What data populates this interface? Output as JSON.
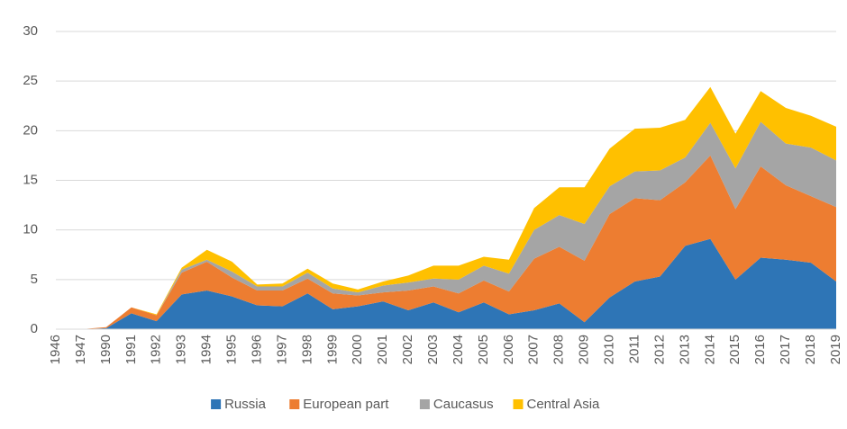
{
  "chart_data": {
    "type": "stacked_area",
    "categories": [
      "1946",
      "1947",
      "1990",
      "1991",
      "1992",
      "1993",
      "1994",
      "1995",
      "1996",
      "1997",
      "1998",
      "1999",
      "2000",
      "2001",
      "2002",
      "2003",
      "2004",
      "2005",
      "2006",
      "2007",
      "2008",
      "2009",
      "2010",
      "2011",
      "2012",
      "2013",
      "2014",
      "2015",
      "2016",
      "2017",
      "2018",
      "2019"
    ],
    "series": [
      {
        "name": "Russia",
        "color": "#2e75b6",
        "values": [
          0,
          0,
          0.1,
          1.6,
          0.8,
          3.5,
          3.9,
          3.3,
          2.4,
          2.3,
          3.6,
          2.0,
          2.3,
          2.8,
          1.9,
          2.7,
          1.7,
          2.7,
          1.5,
          1.9,
          2.6,
          0.7,
          3.2,
          4.8,
          5.3,
          8.4,
          9.1,
          5.0,
          7.2,
          7.0,
          6.7,
          4.8
        ]
      },
      {
        "name": "European part",
        "color": "#ed7d31",
        "values": [
          0,
          0,
          0.1,
          0.6,
          0.6,
          2.2,
          2.9,
          1.9,
          1.5,
          1.6,
          1.5,
          1.6,
          1.1,
          0.9,
          2.0,
          1.6,
          1.9,
          2.2,
          2.3,
          5.2,
          5.7,
          6.2,
          8.4,
          8.4,
          7.7,
          6.4,
          8.4,
          7.1,
          9.2,
          7.5,
          6.7,
          7.5
        ]
      },
      {
        "name": "Caucasus",
        "color": "#a5a5a5",
        "values": [
          0,
          0,
          0,
          0,
          0,
          0.3,
          0.2,
          0.6,
          0.4,
          0.4,
          0.6,
          0.5,
          0.3,
          0.7,
          0.8,
          0.8,
          1.4,
          1.5,
          1.8,
          2.9,
          3.2,
          3.7,
          2.8,
          2.7,
          3.0,
          2.5,
          3.3,
          4.1,
          4.5,
          4.2,
          4.9,
          4.7
        ]
      },
      {
        "name": "Central Asia",
        "color": "#ffc000",
        "values": [
          0,
          0,
          0,
          0,
          0.1,
          0.2,
          1.0,
          1.0,
          0.2,
          0.3,
          0.4,
          0.5,
          0.3,
          0.4,
          0.7,
          1.3,
          1.4,
          0.9,
          1.4,
          2.2,
          2.8,
          3.7,
          3.8,
          4.3,
          4.3,
          3.8,
          3.6,
          3.5,
          3.1,
          3.6,
          3.2,
          3.4
        ]
      }
    ],
    "ylim": [
      0,
      30
    ],
    "yticks": [
      0,
      5,
      10,
      15,
      20,
      25,
      30
    ],
    "grid": true,
    "legend": "bottom"
  }
}
